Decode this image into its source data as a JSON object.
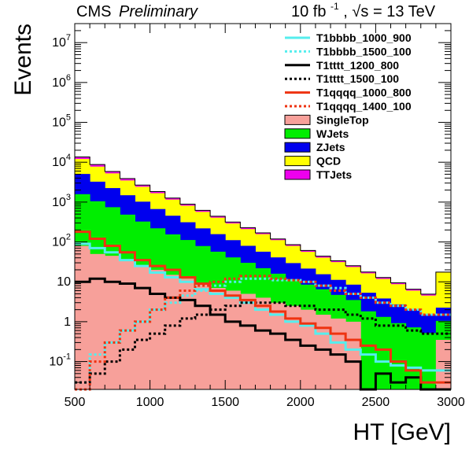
{
  "header": {
    "experiment": "CMS",
    "status": "Preliminary",
    "luminosity": "10 fb",
    "lumi_exponent": "-1",
    "energy_sep": ", ",
    "sqrt_s": "√s",
    "energy_value": "= 13 TeV"
  },
  "chart_data": {
    "type": "area",
    "title": "",
    "xlabel": "HT [GeV]",
    "ylabel": "Events",
    "xlim": [
      500,
      3000
    ],
    "ylim": [
      0.02,
      30000000
    ],
    "yscale": "log",
    "grid": false,
    "legend_position": "top-right",
    "bin_edges": [
      500,
      600,
      700,
      800,
      900,
      1000,
      1100,
      1200,
      1300,
      1400,
      1500,
      1600,
      1700,
      1800,
      1900,
      2000,
      2100,
      2200,
      2300,
      2400,
      2500,
      2600,
      2700,
      2800,
      2900,
      3000
    ],
    "x_ticks": [
      {
        "value": 500,
        "label": "500"
      },
      {
        "value": 1000,
        "label": "1000"
      },
      {
        "value": 1500,
        "label": "1500"
      },
      {
        "value": 2000,
        "label": "2000"
      },
      {
        "value": 2500,
        "label": "2500"
      },
      {
        "value": 3000,
        "label": "3000"
      }
    ],
    "y_ticks": [
      {
        "value": 0.1,
        "base": "10",
        "exp": "-1"
      },
      {
        "value": 1,
        "base": "1",
        "exp": ""
      },
      {
        "value": 10,
        "base": "10",
        "exp": ""
      },
      {
        "value": 100,
        "base": "10",
        "exp": "2"
      },
      {
        "value": 1000,
        "base": "10",
        "exp": "3"
      },
      {
        "value": 10000,
        "base": "10",
        "exp": "4"
      },
      {
        "value": 100000,
        "base": "10",
        "exp": "5"
      },
      {
        "value": 1000000,
        "base": "10",
        "exp": "6"
      },
      {
        "value": 10000000,
        "base": "10",
        "exp": "7"
      }
    ],
    "stack": [
      {
        "name": "SingleTop",
        "color": "#f7a09a",
        "values": [
          80,
          50,
          45,
          35,
          25,
          20,
          15,
          12,
          9,
          7,
          6,
          5,
          4,
          3,
          2.5,
          2,
          1.5,
          1.2,
          1,
          0.02,
          0.02,
          0.02,
          0.02,
          0.02,
          0.35
        ]
      },
      {
        "name": "WJets",
        "color": "#00ee00",
        "values": [
          1500,
          1000,
          700,
          450,
          300,
          200,
          140,
          100,
          70,
          50,
          35,
          25,
          18,
          13,
          9,
          6.5,
          5,
          3.5,
          2.5,
          1.8,
          1.3,
          0.9,
          0.7,
          0.5,
          0.7
        ]
      },
      {
        "name": "ZJets",
        "color": "#0000ee",
        "values": [
          3500,
          2200,
          1500,
          1000,
          700,
          450,
          300,
          200,
          140,
          100,
          70,
          50,
          35,
          25,
          18,
          13,
          9,
          6.5,
          5,
          3.5,
          2.5,
          1.8,
          1.3,
          1,
          1.2
        ]
      },
      {
        "name": "QCD",
        "color": "#ffff00",
        "values": [
          7000,
          4500,
          3000,
          2000,
          1400,
          1000,
          700,
          500,
          350,
          250,
          180,
          130,
          100,
          70,
          50,
          35,
          25,
          20,
          15,
          11,
          8,
          6,
          4,
          3,
          15
        ]
      },
      {
        "name": "TTJets",
        "color": "#ee00ee",
        "values": [
          1500,
          1000,
          600,
          400,
          250,
          170,
          110,
          75,
          50,
          35,
          25,
          18,
          12,
          8,
          6,
          4.5,
          3.5,
          2.5,
          1.8,
          1.3,
          1,
          0.7,
          0.5,
          0.4,
          0.3
        ]
      }
    ],
    "signals": [
      {
        "name": "T1bbbb_1000_900",
        "color": "#55eeee",
        "style": "solid",
        "width": 3,
        "values": [
          90,
          70,
          55,
          35,
          25,
          17,
          13,
          10,
          6.5,
          5,
          4,
          3,
          2,
          1.5,
          1,
          0.8,
          0.5,
          0.3,
          0.2,
          0.15,
          0.1,
          0.08,
          0.07,
          0.06,
          0.06
        ]
      },
      {
        "name": "T1bbbb_1500_100",
        "color": "#55eeee",
        "style": "dotted",
        "width": 3,
        "values": [
          0.03,
          0.15,
          0.3,
          0.6,
          1,
          2,
          3,
          4.5,
          6,
          8,
          10,
          12,
          12,
          11,
          11,
          10,
          8,
          7,
          5,
          4,
          3,
          2.5,
          2,
          1.5,
          1.5
        ]
      },
      {
        "name": "T1tttt_1200_800",
        "color": "#000000",
        "style": "solid",
        "width": 3,
        "values": [
          10,
          12,
          10,
          9,
          7,
          5,
          4,
          3.5,
          2.5,
          1.5,
          1,
          0.8,
          0.6,
          0.5,
          0.35,
          0.25,
          0.2,
          0.15,
          0.1,
          0.02,
          0.05,
          0.03,
          0.04,
          0.02,
          0.02
        ]
      },
      {
        "name": "T1tttt_1500_100",
        "color": "#000000",
        "style": "dotted",
        "width": 3,
        "values": [
          0.03,
          0.05,
          0.1,
          0.2,
          0.35,
          0.5,
          0.8,
          1.2,
          1.5,
          2,
          2.5,
          3,
          3,
          3,
          2.5,
          2.5,
          2,
          2,
          1.5,
          1.2,
          0.8,
          0.8,
          0.6,
          0.5,
          0.5
        ]
      },
      {
        "name": "T1qqqq_1000_800",
        "color": "#ee3311",
        "style": "solid",
        "width": 3,
        "values": [
          180,
          120,
          80,
          55,
          35,
          25,
          20,
          13,
          9,
          6,
          4.5,
          3.5,
          2.5,
          1.8,
          1.2,
          0.9,
          0.7,
          0.5,
          0.35,
          0.25,
          0.2,
          0.1,
          0.06,
          0.03,
          0.03
        ]
      },
      {
        "name": "T1qqqq_1400_100",
        "color": "#ee3311",
        "style": "dotted",
        "width": 3,
        "values": [
          0.02,
          0.1,
          0.3,
          0.6,
          1,
          2,
          4,
          6,
          8,
          10,
          12,
          14,
          14,
          12,
          11,
          10,
          8,
          6,
          5,
          4,
          3,
          2.5,
          2,
          1.5,
          1.5
        ]
      }
    ],
    "legend_order": [
      "T1bbbb_1000_900",
      "T1bbbb_1500_100",
      "T1tttt_1200_800",
      "T1tttt_1500_100",
      "T1qqqq_1000_800",
      "T1qqqq_1400_100",
      "SingleTop",
      "WJets",
      "ZJets",
      "QCD",
      "TTJets"
    ]
  }
}
